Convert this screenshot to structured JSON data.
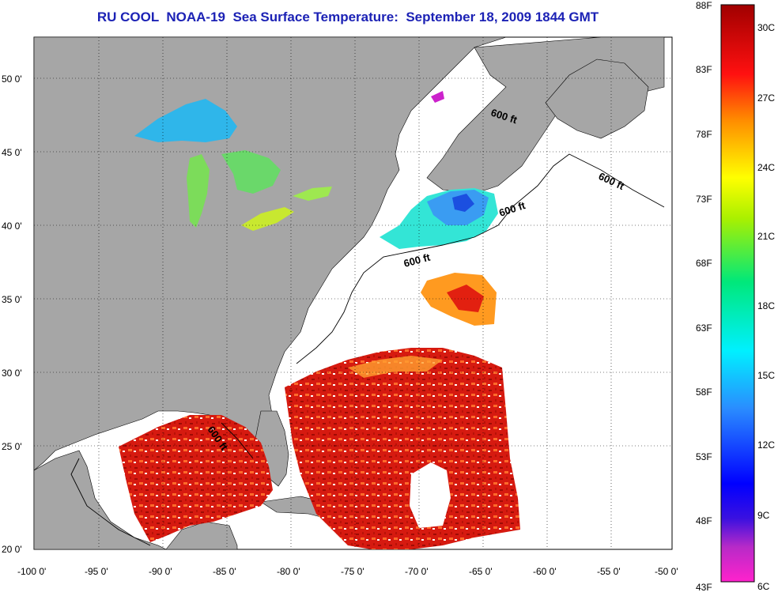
{
  "title": "RU COOL  NOAA-19  Sea Surface Temperature:  September 18, 2009 1844 GMT",
  "map": {
    "lon_range": [
      -100,
      -50
    ],
    "lat_range": [
      20,
      52.5
    ],
    "lon_ticks": [
      "-100 0'",
      "-95 0'",
      "-90 0'",
      "-85 0'",
      "-80 0'",
      "-75 0'",
      "-70 0'",
      "-65 0'",
      "-60 0'",
      "-55 0'",
      "-50 0'"
    ],
    "lat_ticks": [
      "50 0'",
      "45 0'",
      "40 0'",
      "35 0'",
      "30 0'",
      "25 0'",
      "20 0'"
    ],
    "grid": "dotted",
    "land_color": "#a6a6a6",
    "no_data_color": "#ffffff",
    "isobath_labels": [
      "600 ft",
      "600 ft",
      "600 ft",
      "600 ft",
      "600 ft"
    ]
  },
  "colorbar": {
    "fahrenheit_labels": [
      "88F",
      "83F",
      "78F",
      "73F",
      "68F",
      "63F",
      "58F",
      "53F",
      "48F",
      "43F"
    ],
    "celsius_labels": [
      "30C",
      "27C",
      "24C",
      "21C",
      "18C",
      "15C",
      "12C",
      "9C",
      "6C"
    ],
    "range_c": [
      6,
      31
    ],
    "colors": [
      "#ff22cc",
      "#8b20c8",
      "#0000ff",
      "#2a8cff",
      "#00f0ff",
      "#00e87a",
      "#aaf000",
      "#ffff00",
      "#ff8c00",
      "#ff1010",
      "#a00000"
    ]
  }
}
